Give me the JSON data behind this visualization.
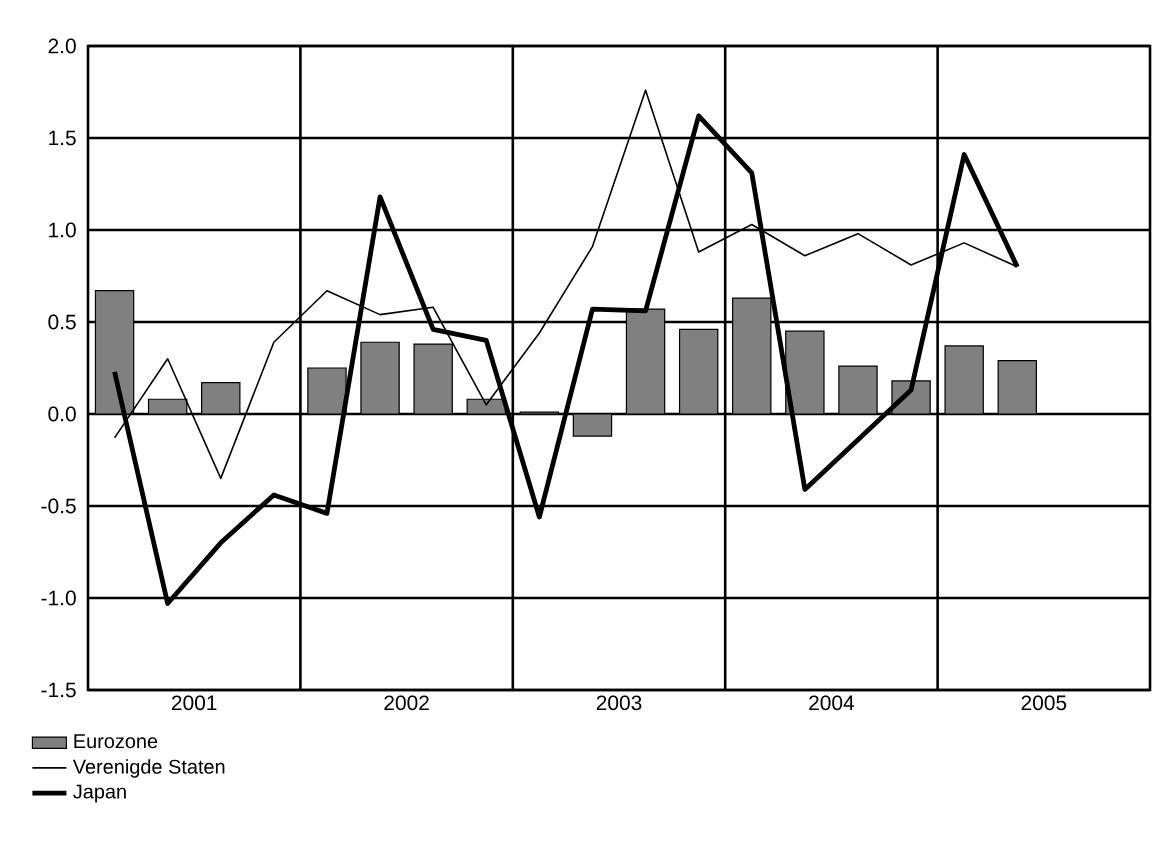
{
  "chart_data": {
    "type": "bar",
    "x": [
      2001.125,
      2001.375,
      2001.625,
      2001.875,
      2002.125,
      2002.375,
      2002.625,
      2002.875,
      2003.125,
      2003.375,
      2003.625,
      2003.875,
      2004.125,
      2004.375,
      2004.625,
      2004.875,
      2005.125,
      2005.375
    ],
    "series": [
      {
        "name": "Eurozone",
        "color": "#808080",
        "values": [
          0.67,
          0.08,
          0.17,
          null,
          0.25,
          0.39,
          0.38,
          0.08,
          0.01,
          -0.12,
          0.57,
          0.46,
          0.63,
          0.45,
          0.26,
          0.18,
          0.37,
          0.29
        ]
      },
      {
        "name": "Verenigde Staten",
        "type": "line",
        "color": "#000000",
        "values": [
          -0.13,
          0.3,
          -0.35,
          0.39,
          0.67,
          0.54,
          0.58,
          0.05,
          0.44,
          0.91,
          1.76,
          0.88,
          1.03,
          0.86,
          0.98,
          0.81,
          0.93,
          0.8
        ]
      },
      {
        "name": "Japan",
        "type": "line",
        "color": "#000000",
        "values": [
          0.23,
          -1.03,
          -0.7,
          -0.44,
          -0.54,
          1.18,
          0.46,
          0.4,
          -0.56,
          0.57,
          0.56,
          1.62,
          1.31,
          -0.41,
          -0.14,
          0.13,
          1.41,
          0.8
        ]
      }
    ],
    "xlim": [
      2001,
      2006
    ],
    "xticks": [
      {
        "value": 2001.5,
        "label": "2001"
      },
      {
        "value": 2002,
        "label": null
      },
      {
        "value": 2002.5,
        "label": "2002"
      },
      {
        "value": 2003,
        "label": null
      },
      {
        "value": 2003.5,
        "label": "2003"
      },
      {
        "value": 2004,
        "label": null
      },
      {
        "value": 2004.5,
        "label": "2004"
      },
      {
        "value": 2005,
        "label": null
      },
      {
        "value": 2005.5,
        "label": "2005"
      }
    ],
    "ylim": [
      -1.5,
      2.0
    ],
    "yticks": [
      {
        "value": -1.5,
        "label": "-1.5"
      },
      {
        "value": -1.0,
        "label": "-1.0"
      },
      {
        "value": -0.5,
        "label": "-0.5"
      },
      {
        "value": 0,
        "label": "0.0"
      },
      {
        "value": 0.5,
        "label": "0.5"
      },
      {
        "value": 1.0,
        "label": "1.0"
      },
      {
        "value": 1.5,
        "label": "1.5"
      },
      {
        "value": 2.0,
        "label": "2.0"
      }
    ],
    "grid": true,
    "legend": "bottom left",
    "marker": "none",
    "line_style": "solid"
  }
}
